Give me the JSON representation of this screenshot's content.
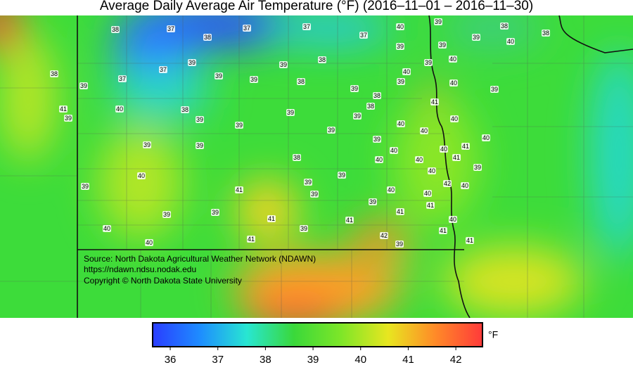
{
  "title": "Average Daily Average Air Temperature (°F) (2016–11–01 – 2016–11–30)",
  "source": [
    "Source: North Dakota Agricultural Weather Network (NDAWN)",
    "https://ndawn.ndsu.nodak.edu",
    "Copyright © North Dakota State University"
  ],
  "stations": [
    38,
    37,
    38,
    37,
    37,
    37,
    40,
    39,
    39,
    38,
    40,
    38,
    39,
    39,
    38,
    37,
    37,
    39,
    39,
    39,
    39,
    38,
    38,
    40,
    39,
    40,
    39,
    40,
    39,
    39,
    39,
    38,
    38,
    41,
    41,
    39,
    40,
    38,
    39,
    39,
    39,
    40,
    40,
    40,
    39,
    39,
    39,
    40,
    39,
    39,
    40,
    40,
    41,
    41,
    38,
    40,
    40,
    39,
    40,
    40,
    39,
    39,
    42,
    40,
    39,
    41,
    39,
    40,
    40,
    39,
    41,
    39,
    39,
    41,
    41,
    41,
    40,
    40,
    39,
    41,
    40,
    41,
    42,
    39,
    41
  ],
  "colorbar": {
    "unit": "°F",
    "lim": [
      35.63,
      42.56
    ],
    "ticks": [
      36,
      37,
      38,
      39,
      40,
      41,
      42
    ],
    "colors": [
      "#2a3dff",
      "#1e8cff",
      "#28e6d2",
      "#3ad83a",
      "#7ee628",
      "#e8e620",
      "#ff8a28",
      "#ff3a3a"
    ]
  }
}
